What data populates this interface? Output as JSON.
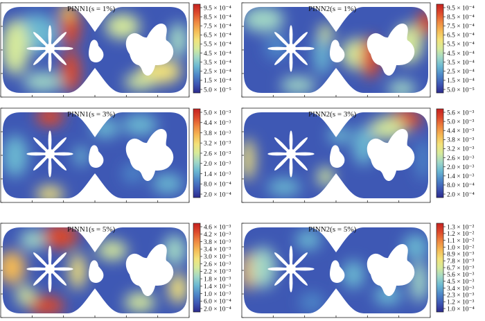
{
  "panels": [
    {
      "id": "pinn1-s1",
      "title": "PINN1(s = 1%)",
      "colorbar_ticks": [
        "9.5 × 10⁻⁴",
        "8.5 × 10⁻⁴",
        "7.5 × 10⁻⁴",
        "6.5 × 10⁻⁴",
        "5.5 × 10⁻⁴",
        "4.5 × 10⁻⁴",
        "3.5 × 10⁻⁴",
        "2.5 × 10⁻⁴",
        "1.5 × 10⁻⁴",
        "5.0 × 10⁻⁵"
      ]
    },
    {
      "id": "pinn2-s1",
      "title": "PINN2(s = 1%)",
      "colorbar_ticks": [
        "9.5 × 10⁻⁴",
        "8.5 × 10⁻⁴",
        "7.5 × 10⁻⁴",
        "6.5 × 10⁻⁴",
        "5.5 × 10⁻⁴",
        "4.5 × 10⁻⁴",
        "3.5 × 10⁻⁴",
        "2.5 × 10⁻⁴",
        "1.5 × 10⁻⁴",
        "5.0 × 10⁻⁵"
      ]
    },
    {
      "id": "pinn1-s3",
      "title": "PINN1(s = 3%)",
      "colorbar_ticks": [
        "5.0 × 10⁻³",
        "4.4 × 10⁻³",
        "3.8 × 10⁻³",
        "3.2 × 10⁻³",
        "2.6 × 10⁻³",
        "2.0 × 10⁻³",
        "1.4 × 10⁻³",
        "8.0 × 10⁻⁴",
        "2.0 × 10⁻⁴"
      ]
    },
    {
      "id": "pinn2-s3",
      "title": "PINN2(s = 3%)",
      "colorbar_ticks": [
        "5.6 × 10⁻³",
        "5.0 × 10⁻³",
        "4.4 × 10⁻³",
        "3.8 × 10⁻³",
        "3.2 × 10⁻³",
        "2.6 × 10⁻³",
        "2.0 × 10⁻³",
        "1.4 × 10⁻³",
        "8.0 × 10⁻⁴",
        "2.0 × 10⁻⁴"
      ]
    },
    {
      "id": "pinn1-s5",
      "title": "PINN1(s = 5%)",
      "colorbar_ticks": [
        "4.6 × 10⁻³",
        "4.2 × 10⁻³",
        "3.8 × 10⁻³",
        "3.4 × 10⁻³",
        "3.0 × 10⁻³",
        "2.6 × 10⁻³",
        "2.2 × 10⁻³",
        "1.8 × 10⁻³",
        "1.4 × 10⁻³",
        "1.0 × 10⁻³",
        "6.0 × 10⁻⁴",
        "2.0 × 10⁻⁴"
      ]
    },
    {
      "id": "pinn2-s5",
      "title": "PINN2(s = 5%)",
      "colorbar_ticks": [
        "1.3 × 10⁻²",
        "1.2 × 10⁻²",
        "1.1 × 10⁻²",
        "1.0 × 10⁻²",
        "8.9 × 10⁻³",
        "7.8 × 10⁻³",
        "6.7 × 10⁻³",
        "5.6 × 10⁻³",
        "4.5 × 10⁻³",
        "3.4 × 10⁻³",
        "2.3 × 10⁻³",
        "1.2 × 10⁻³",
        "1.0 × 10⁻⁴"
      ]
    }
  ],
  "colormap": [
    "#2c2a8c",
    "#3e58b4",
    "#4e87c8",
    "#6bb8d2",
    "#a2d8c6",
    "#d6ea9b",
    "#f3e27a",
    "#f5ba55",
    "#ee8640",
    "#dd4a2c",
    "#c42120"
  ]
}
